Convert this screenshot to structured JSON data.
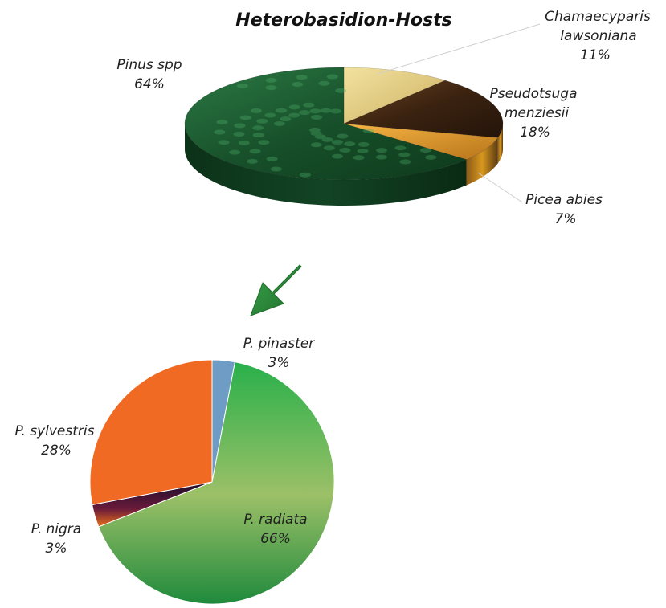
{
  "chart_data": [
    {
      "type": "pie",
      "title": "Heterobasidion-Hosts",
      "slices": [
        {
          "label": "Chamaecyparis lawsoniana",
          "lines": [
            "Chamaecyparis",
            "lawsoniana"
          ],
          "value": 11,
          "value_text": "11%",
          "color": "#e6cd7a"
        },
        {
          "label": "Pseudotsuga menziesii",
          "lines": [
            "Pseudotsuga",
            "menziesii"
          ],
          "value": 18,
          "value_text": "18%",
          "color": "#4a2d14"
        },
        {
          "label": "Picea abies",
          "lines": [
            "Picea abies"
          ],
          "value": 7,
          "value_text": "7%",
          "color": "#e09a2a"
        },
        {
          "label": "Pinus spp",
          "lines": [
            "Pinus spp"
          ],
          "value": 64,
          "value_text": "64%",
          "color": "#1f5c30"
        }
      ]
    },
    {
      "type": "pie",
      "slices": [
        {
          "label": "P. pinaster",
          "lines": [
            "P. pinaster"
          ],
          "value": 3,
          "value_text": "3%",
          "color": "#6f9cc4"
        },
        {
          "label": "P. radiata",
          "lines": [
            "P. radiata"
          ],
          "value": 66,
          "value_text": "66%",
          "color": "#4caf50"
        },
        {
          "label": "P. nigra",
          "lines": [
            "P. nigra"
          ],
          "value": 3,
          "value_text": "3%",
          "color": "#2a1230"
        },
        {
          "label": "P. sylvestris",
          "lines": [
            "P. sylvestris"
          ],
          "value": 28,
          "value_text": "28%",
          "color": "#f06a24"
        }
      ]
    }
  ],
  "arrow": {
    "color": "#2e8b3c",
    "icon": "down-left-arrow-icon"
  }
}
